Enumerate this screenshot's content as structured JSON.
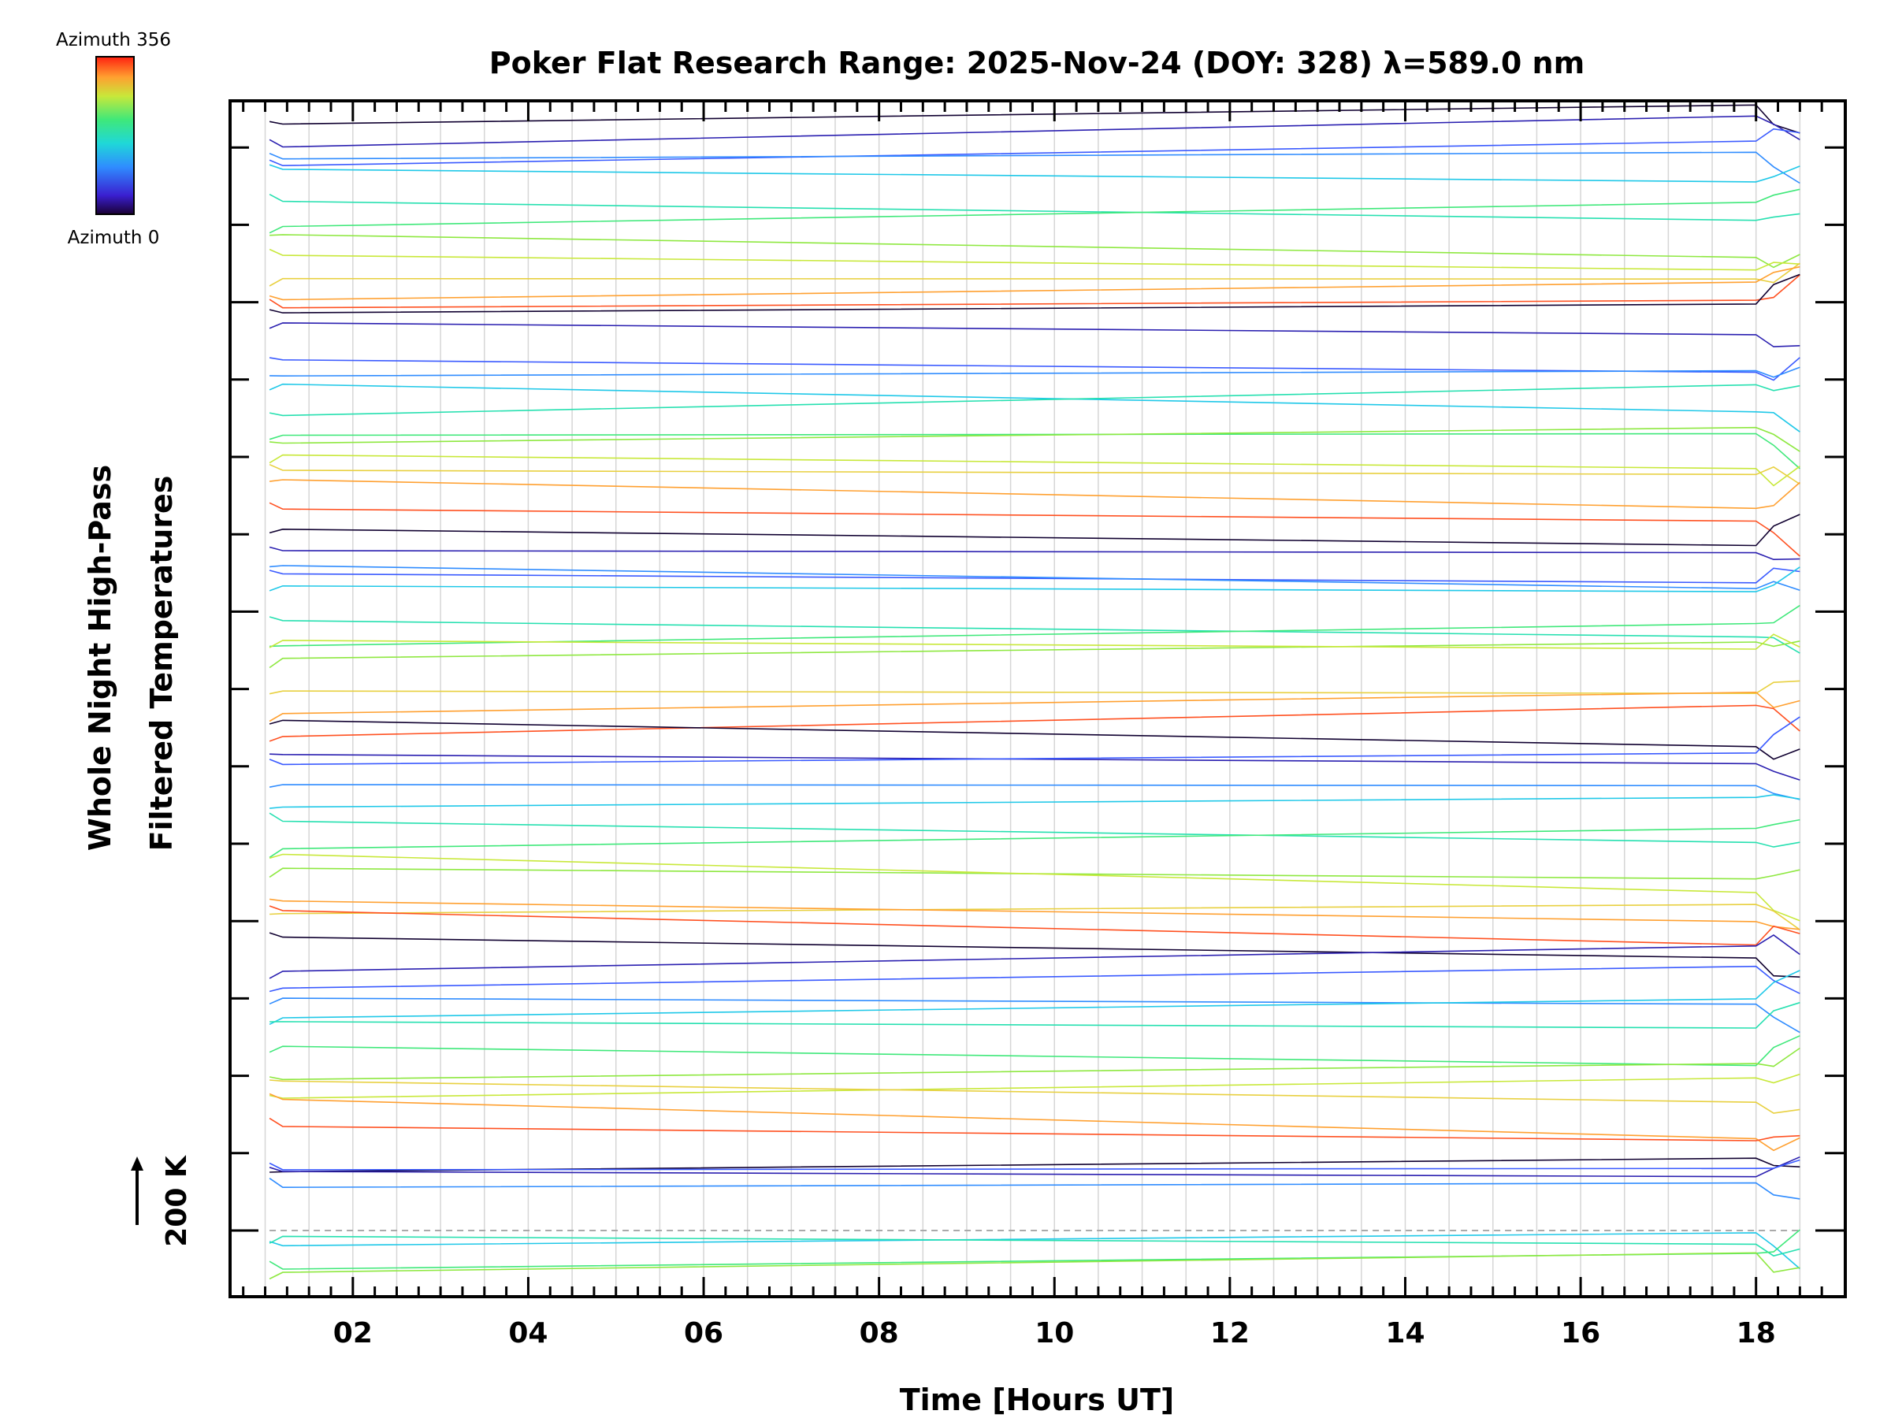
{
  "chart_data": {
    "type": "line",
    "title": "Poker Flat Research Range: 2025-Nov-24 (DOY: 328) λ=589.0 nm",
    "xlabel": "Time [Hours UT]",
    "ylabel": [
      "Whole Night High-Pass",
      "Filtered Temperatures"
    ],
    "xlim": [
      0.6,
      19.0
    ],
    "x_ticks": [
      2,
      4,
      6,
      8,
      10,
      12,
      14,
      16,
      18
    ],
    "x_tick_labels": [
      "02",
      "04",
      "06",
      "08",
      "10",
      "12",
      "14",
      "16",
      "18"
    ],
    "grid": true,
    "colorbar": {
      "top_label": "Azimuth 356",
      "bottom_label": "Azimuth 0",
      "min": 0,
      "max": 356
    },
    "scale_bar": {
      "label": "200 K",
      "kelvin": 200
    },
    "series_note": "One stacked, offset trace per azimuth direction; each trace is a night-long high-pass filtered temperature profile sampled at the times below.",
    "series_x": [
      1.05,
      1.2,
      18.0,
      18.2,
      18.5
    ],
    "series_count": 68
  }
}
